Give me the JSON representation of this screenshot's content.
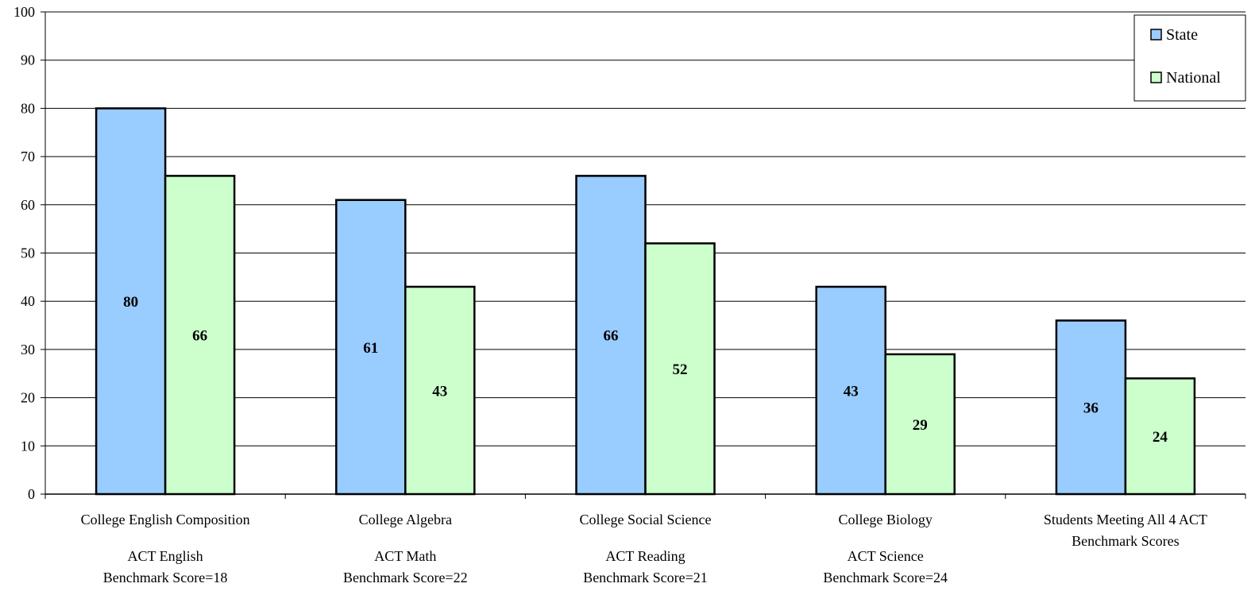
{
  "chart_data": {
    "type": "bar",
    "categories": [
      "College English Composition",
      "College Algebra",
      "College Social Science",
      "College Biology",
      "Students Meeting All 4 ACT Benchmark Scores"
    ],
    "category_lines": [
      [
        "College English Composition"
      ],
      [
        "College Algebra"
      ],
      [
        "College Social Science"
      ],
      [
        "College Biology"
      ],
      [
        "Students Meeting All 4 ACT",
        "Benchmark Scores"
      ]
    ],
    "sublabels": [
      [
        "ACT English",
        "Benchmark Score=18"
      ],
      [
        "ACT Math",
        "Benchmark Score=22"
      ],
      [
        "ACT Reading",
        "Benchmark Score=21"
      ],
      [
        "ACT Science",
        "Benchmark Score=24"
      ],
      []
    ],
    "series": [
      {
        "name": "State",
        "color": "#99CCFF",
        "values": [
          80,
          61,
          66,
          43,
          36
        ]
      },
      {
        "name": "National",
        "color": "#CCFFCC",
        "values": [
          66,
          43,
          52,
          29,
          24
        ]
      }
    ],
    "ylim": [
      0,
      100
    ],
    "yticks": [
      0,
      10,
      20,
      30,
      40,
      50,
      60,
      70,
      80,
      90,
      100
    ],
    "grid": true,
    "legend_position": "top-right",
    "data_labels": "inside-middle"
  }
}
